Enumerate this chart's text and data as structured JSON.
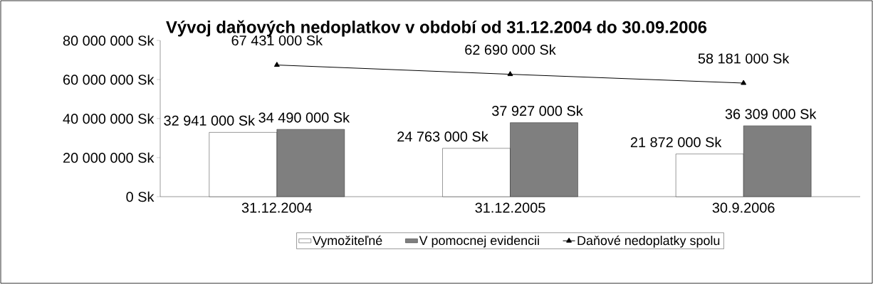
{
  "chart_data": {
    "type": "bar",
    "title": "Vývoj daňových nedoplatkov v období od 31.12.2004 do 30.09.2006",
    "categories": [
      "31.12.2004",
      "31.12.2005",
      "30.9.2006"
    ],
    "series": [
      {
        "name": "Vymožiteľné",
        "color": "#ffffff",
        "values": [
          32941000,
          24763000,
          21872000
        ],
        "value_labels": [
          "32 941 000 Sk",
          "24 763 000 Sk",
          "21 872 000 Sk"
        ]
      },
      {
        "name": "V pomocnej evidencii",
        "color": "#7f7f7f",
        "values": [
          34490000,
          37927000,
          36309000
        ],
        "value_labels": [
          "34 490 000 Sk",
          "37 927 000 Sk",
          "36 309 000 Sk"
        ]
      },
      {
        "name": "Daňové nedoplatky spolu",
        "type": "line",
        "color": "#000000",
        "marker": "triangle",
        "values": [
          67431000,
          62690000,
          58181000
        ],
        "value_labels": [
          "67 431 000 Sk",
          "62 690 000 Sk",
          "58 181 000 Sk"
        ]
      }
    ],
    "ylim": [
      0,
      80000000
    ],
    "yticks": [
      {
        "value": 0,
        "label": "0 Sk"
      },
      {
        "value": 20000000,
        "label": "20 000 000 Sk"
      },
      {
        "value": 40000000,
        "label": "40 000 000 Sk"
      },
      {
        "value": 60000000,
        "label": "60 000 000 Sk"
      },
      {
        "value": 80000000,
        "label": "80 000 000 Sk"
      }
    ],
    "legend": "bottom"
  }
}
